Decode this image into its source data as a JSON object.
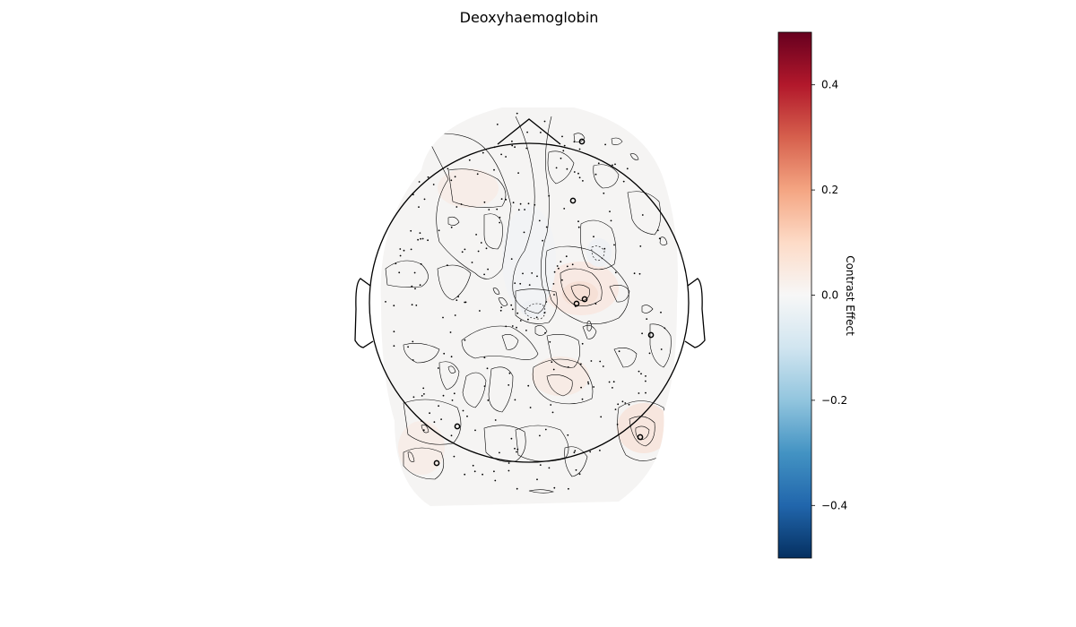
{
  "chart_data": {
    "type": "heatmap",
    "title": "Deoxyhaemoglobin",
    "colorbar": {
      "label": "Contrast Effect",
      "range": [
        -0.5,
        0.5
      ],
      "ticks": [
        0.4,
        0.2,
        0.0,
        -0.2,
        -0.4
      ],
      "tick_labels": [
        "0.4",
        "0.2",
        "0.0",
        "−0.2",
        "−0.4"
      ],
      "colormap": "RdBu_r",
      "colors": {
        "high": "#67001f",
        "mid_high": "#d6604d",
        "center": "#f7f7f7",
        "mid_low": "#4393c3",
        "low": "#053061"
      }
    },
    "map_value_range": [
      -0.02,
      0.06
    ],
    "highlighted_channel_count": 9
  }
}
